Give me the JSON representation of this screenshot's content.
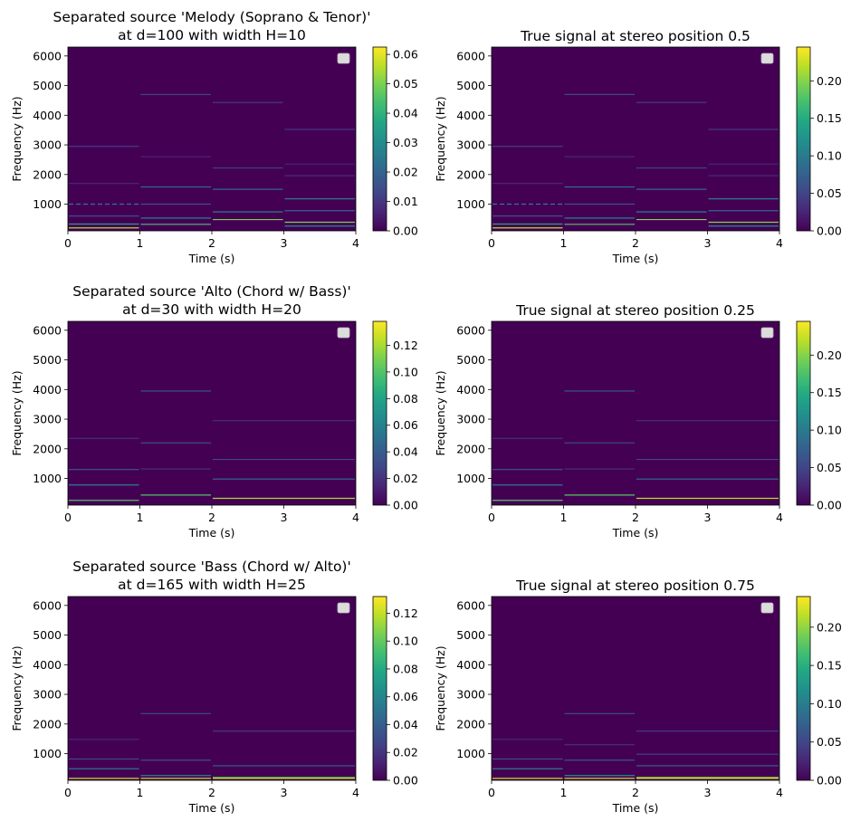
{
  "chart_data": [
    {
      "type": "heatmap",
      "title_lines": [
        "Separated source 'Melody (Soprano & Tenor)'",
        "at d=100 with width H=10"
      ],
      "xlabel": "Time (s)",
      "ylabel": "Frequency (Hz)",
      "xlim": [
        0,
        4
      ],
      "ylim": [
        100,
        6300
      ],
      "xticks": [
        "0",
        "1",
        "2",
        "3",
        "4"
      ],
      "yticks": [
        "1000",
        "2000",
        "3000",
        "4000",
        "5000",
        "6000"
      ],
      "colorbar": {
        "min": 0,
        "max": 0.0625,
        "ticks": [
          0,
          0.01,
          0.02,
          0.03,
          0.04,
          0.05,
          0.06
        ],
        "tick_labels": [
          "0.00",
          "0.01",
          "0.02",
          "0.03",
          "0.04",
          "0.05",
          "0.06"
        ]
      },
      "lines": [
        {
          "t0": 0,
          "t1": 1,
          "f": 1000,
          "v": 0.025,
          "dashed": true
        },
        {
          "t0": 0,
          "t1": 1,
          "f": 2950,
          "v": 0.012
        },
        {
          "t0": 0,
          "t1": 1,
          "f": 1700,
          "v": 0.006
        },
        {
          "t0": 0,
          "t1": 1,
          "f": 600,
          "v": 0.015
        },
        {
          "t0": 0,
          "t1": 1,
          "f": 330,
          "v": 0.035
        },
        {
          "t0": 0,
          "t1": 1,
          "f": 200,
          "v": 0.055
        },
        {
          "t0": 1,
          "t1": 2,
          "f": 4700,
          "v": 0.012
        },
        {
          "t0": 1,
          "t1": 2,
          "f": 2600,
          "v": 0.006
        },
        {
          "t0": 1,
          "t1": 2,
          "f": 1580,
          "v": 0.022
        },
        {
          "t0": 1,
          "t1": 2,
          "f": 1000,
          "v": 0.015
        },
        {
          "t0": 1,
          "t1": 2,
          "f": 530,
          "v": 0.03
        },
        {
          "t0": 1,
          "t1": 2,
          "f": 320,
          "v": 0.045
        },
        {
          "t0": 2,
          "t1": 3,
          "f": 4430,
          "v": 0.01
        },
        {
          "t0": 2,
          "t1": 3,
          "f": 2220,
          "v": 0.012
        },
        {
          "t0": 2,
          "t1": 3,
          "f": 1500,
          "v": 0.02
        },
        {
          "t0": 2,
          "t1": 3,
          "f": 740,
          "v": 0.03
        },
        {
          "t0": 2,
          "t1": 3,
          "f": 480,
          "v": 0.05
        },
        {
          "t0": 3,
          "t1": 4,
          "f": 3520,
          "v": 0.01
        },
        {
          "t0": 3,
          "t1": 4,
          "f": 2350,
          "v": 0.006
        },
        {
          "t0": 3,
          "t1": 4,
          "f": 1960,
          "v": 0.008
        },
        {
          "t0": 3,
          "t1": 4,
          "f": 1180,
          "v": 0.025
        },
        {
          "t0": 3,
          "t1": 4,
          "f": 780,
          "v": 0.02
        },
        {
          "t0": 3,
          "t1": 4,
          "f": 390,
          "v": 0.05
        },
        {
          "t0": 3,
          "t1": 4,
          "f": 260,
          "v": 0.03
        }
      ]
    },
    {
      "type": "heatmap",
      "title_lines": [
        "True signal at stereo position 0.5"
      ],
      "xlabel": "Time (s)",
      "ylabel": "Frequency (Hz)",
      "xlim": [
        0,
        4
      ],
      "ylim": [
        100,
        6300
      ],
      "xticks": [
        "0",
        "1",
        "2",
        "3",
        "4"
      ],
      "yticks": [
        "1000",
        "2000",
        "3000",
        "4000",
        "5000",
        "6000"
      ],
      "colorbar": {
        "min": 0,
        "max": 0.245,
        "ticks": [
          0,
          0.05,
          0.1,
          0.15,
          0.2
        ],
        "tick_labels": [
          "0.00",
          "0.05",
          "0.10",
          "0.15",
          "0.20"
        ]
      },
      "lines": [
        {
          "t0": 0,
          "t1": 1,
          "f": 1000,
          "v": 0.1,
          "dashed": true
        },
        {
          "t0": 0,
          "t1": 1,
          "f": 2950,
          "v": 0.05
        },
        {
          "t0": 0,
          "t1": 1,
          "f": 1700,
          "v": 0.025
        },
        {
          "t0": 0,
          "t1": 1,
          "f": 600,
          "v": 0.06
        },
        {
          "t0": 0,
          "t1": 1,
          "f": 330,
          "v": 0.14
        },
        {
          "t0": 0,
          "t1": 1,
          "f": 200,
          "v": 0.22
        },
        {
          "t0": 1,
          "t1": 2,
          "f": 4700,
          "v": 0.05
        },
        {
          "t0": 1,
          "t1": 2,
          "f": 2600,
          "v": 0.025
        },
        {
          "t0": 1,
          "t1": 2,
          "f": 1580,
          "v": 0.09
        },
        {
          "t0": 1,
          "t1": 2,
          "f": 1000,
          "v": 0.06
        },
        {
          "t0": 1,
          "t1": 2,
          "f": 530,
          "v": 0.12
        },
        {
          "t0": 1,
          "t1": 2,
          "f": 320,
          "v": 0.18
        },
        {
          "t0": 2,
          "t1": 3,
          "f": 4430,
          "v": 0.04
        },
        {
          "t0": 2,
          "t1": 3,
          "f": 2220,
          "v": 0.05
        },
        {
          "t0": 2,
          "t1": 3,
          "f": 1500,
          "v": 0.08
        },
        {
          "t0": 2,
          "t1": 3,
          "f": 740,
          "v": 0.12
        },
        {
          "t0": 2,
          "t1": 3,
          "f": 480,
          "v": 0.2
        },
        {
          "t0": 3,
          "t1": 4,
          "f": 3520,
          "v": 0.04
        },
        {
          "t0": 3,
          "t1": 4,
          "f": 2350,
          "v": 0.025
        },
        {
          "t0": 3,
          "t1": 4,
          "f": 1960,
          "v": 0.03
        },
        {
          "t0": 3,
          "t1": 4,
          "f": 1180,
          "v": 0.1
        },
        {
          "t0": 3,
          "t1": 4,
          "f": 780,
          "v": 0.08
        },
        {
          "t0": 3,
          "t1": 4,
          "f": 390,
          "v": 0.2
        },
        {
          "t0": 3,
          "t1": 4,
          "f": 260,
          "v": 0.12
        }
      ]
    },
    {
      "type": "heatmap",
      "title_lines": [
        "Separated source 'Alto (Chord w/ Bass)'",
        "at d=30 with width H=20"
      ],
      "xlabel": "Time (s)",
      "ylabel": "Frequency (Hz)",
      "xlim": [
        0,
        4
      ],
      "ylim": [
        100,
        6300
      ],
      "xticks": [
        "0",
        "1",
        "2",
        "3",
        "4"
      ],
      "yticks": [
        "1000",
        "2000",
        "3000",
        "4000",
        "5000",
        "6000"
      ],
      "colorbar": {
        "min": 0,
        "max": 0.138,
        "ticks": [
          0,
          0.02,
          0.04,
          0.06,
          0.08,
          0.1,
          0.12
        ],
        "tick_labels": [
          "0.00",
          "0.02",
          "0.04",
          "0.06",
          "0.08",
          "0.10",
          "0.12"
        ]
      },
      "lines": [
        {
          "t0": 0,
          "t1": 1,
          "f": 2350,
          "v": 0.02
        },
        {
          "t0": 0,
          "t1": 1,
          "f": 1300,
          "v": 0.04
        },
        {
          "t0": 0,
          "t1": 1,
          "f": 780,
          "v": 0.06
        },
        {
          "t0": 0,
          "t1": 1,
          "f": 260,
          "v": 0.1
        },
        {
          "t0": 1,
          "t1": 2,
          "f": 3950,
          "v": 0.04
        },
        {
          "t0": 1,
          "t1": 2,
          "f": 2200,
          "v": 0.03
        },
        {
          "t0": 1,
          "t1": 2,
          "f": 1320,
          "v": 0.02
        },
        {
          "t0": 1,
          "t1": 2,
          "f": 440,
          "v": 0.1
        },
        {
          "t0": 2,
          "t1": 4,
          "f": 2950,
          "v": 0.02
        },
        {
          "t0": 2,
          "t1": 4,
          "f": 1640,
          "v": 0.03
        },
        {
          "t0": 2,
          "t1": 4,
          "f": 980,
          "v": 0.05
        },
        {
          "t0": 2,
          "t1": 4,
          "f": 330,
          "v": 0.12
        }
      ]
    },
    {
      "type": "heatmap",
      "title_lines": [
        "True signal at stereo position 0.25"
      ],
      "xlabel": "Time (s)",
      "ylabel": "Frequency (Hz)",
      "xlim": [
        0,
        4
      ],
      "ylim": [
        100,
        6300
      ],
      "xticks": [
        "0",
        "1",
        "2",
        "3",
        "4"
      ],
      "yticks": [
        "1000",
        "2000",
        "3000",
        "4000",
        "5000",
        "6000"
      ],
      "colorbar": {
        "min": 0,
        "max": 0.245,
        "ticks": [
          0,
          0.05,
          0.1,
          0.15,
          0.2
        ],
        "tick_labels": [
          "0.00",
          "0.05",
          "0.10",
          "0.15",
          "0.20"
        ]
      },
      "lines": [
        {
          "t0": 0,
          "t1": 1,
          "f": 2350,
          "v": 0.035
        },
        {
          "t0": 0,
          "t1": 1,
          "f": 1300,
          "v": 0.07
        },
        {
          "t0": 0,
          "t1": 1,
          "f": 780,
          "v": 0.1
        },
        {
          "t0": 0,
          "t1": 1,
          "f": 260,
          "v": 0.18
        },
        {
          "t0": 1,
          "t1": 2,
          "f": 3950,
          "v": 0.07
        },
        {
          "t0": 1,
          "t1": 2,
          "f": 2200,
          "v": 0.05
        },
        {
          "t0": 1,
          "t1": 2,
          "f": 1320,
          "v": 0.035
        },
        {
          "t0": 1,
          "t1": 2,
          "f": 440,
          "v": 0.18
        },
        {
          "t0": 2,
          "t1": 4,
          "f": 2950,
          "v": 0.035
        },
        {
          "t0": 2,
          "t1": 4,
          "f": 1640,
          "v": 0.05
        },
        {
          "t0": 2,
          "t1": 4,
          "f": 980,
          "v": 0.09
        },
        {
          "t0": 2,
          "t1": 4,
          "f": 330,
          "v": 0.22
        }
      ]
    },
    {
      "type": "heatmap",
      "title_lines": [
        "Separated source 'Bass (Chord w/ Alto)'",
        "at d=165 with width H=25"
      ],
      "xlabel": "Time (s)",
      "ylabel": "Frequency (Hz)",
      "xlim": [
        0,
        4
      ],
      "ylim": [
        100,
        6300
      ],
      "xticks": [
        "0",
        "1",
        "2",
        "3",
        "4"
      ],
      "yticks": [
        "1000",
        "2000",
        "3000",
        "4000",
        "5000",
        "6000"
      ],
      "colorbar": {
        "min": 0,
        "max": 0.132,
        "ticks": [
          0,
          0.02,
          0.04,
          0.06,
          0.08,
          0.1,
          0.12
        ],
        "tick_labels": [
          "0.00",
          "0.02",
          "0.04",
          "0.06",
          "0.08",
          "0.10",
          "0.12"
        ]
      },
      "lines": [
        {
          "t0": 0,
          "t1": 1,
          "f": 1480,
          "v": 0.015
        },
        {
          "t0": 0,
          "t1": 1,
          "f": 820,
          "v": 0.03
        },
        {
          "t0": 0,
          "t1": 1,
          "f": 490,
          "v": 0.05
        },
        {
          "t0": 0,
          "t1": 1,
          "f": 165,
          "v": 0.12
        },
        {
          "t0": 1,
          "t1": 2,
          "f": 2350,
          "v": 0.03
        },
        {
          "t0": 1,
          "t1": 2,
          "f": 780,
          "v": 0.03
        },
        {
          "t0": 1,
          "t1": 2,
          "f": 260,
          "v": 0.06
        },
        {
          "t0": 1,
          "t1": 2,
          "f": 165,
          "v": 0.12
        },
        {
          "t0": 2,
          "t1": 4,
          "f": 1760,
          "v": 0.02
        },
        {
          "t0": 2,
          "t1": 4,
          "f": 590,
          "v": 0.04
        },
        {
          "t0": 2,
          "t1": 4,
          "f": 196,
          "v": 0.1
        },
        {
          "t0": 2,
          "t1": 4,
          "f": 165,
          "v": 0.12
        }
      ]
    },
    {
      "type": "heatmap",
      "title_lines": [
        "True signal at stereo position 0.75"
      ],
      "xlabel": "Time (s)",
      "ylabel": "Frequency (Hz)",
      "xlim": [
        0,
        4
      ],
      "ylim": [
        100,
        6300
      ],
      "xticks": [
        "0",
        "1",
        "2",
        "3",
        "4"
      ],
      "yticks": [
        "1000",
        "2000",
        "3000",
        "4000",
        "5000",
        "6000"
      ],
      "colorbar": {
        "min": 0,
        "max": 0.24,
        "ticks": [
          0,
          0.05,
          0.1,
          0.15,
          0.2
        ],
        "tick_labels": [
          "0.00",
          "0.05",
          "0.10",
          "0.15",
          "0.20"
        ]
      },
      "lines": [
        {
          "t0": 0,
          "t1": 1,
          "f": 1480,
          "v": 0.03
        },
        {
          "t0": 0,
          "t1": 1,
          "f": 820,
          "v": 0.06
        },
        {
          "t0": 0,
          "t1": 1,
          "f": 490,
          "v": 0.1
        },
        {
          "t0": 0,
          "t1": 1,
          "f": 165,
          "v": 0.22
        },
        {
          "t0": 1,
          "t1": 2,
          "f": 2350,
          "v": 0.06
        },
        {
          "t0": 1,
          "t1": 2,
          "f": 1300,
          "v": 0.035
        },
        {
          "t0": 1,
          "t1": 2,
          "f": 780,
          "v": 0.06
        },
        {
          "t0": 1,
          "t1": 2,
          "f": 260,
          "v": 0.12
        },
        {
          "t0": 1,
          "t1": 2,
          "f": 165,
          "v": 0.22
        },
        {
          "t0": 2,
          "t1": 4,
          "f": 1760,
          "v": 0.04
        },
        {
          "t0": 2,
          "t1": 4,
          "f": 980,
          "v": 0.05
        },
        {
          "t0": 2,
          "t1": 4,
          "f": 590,
          "v": 0.08
        },
        {
          "t0": 2,
          "t1": 4,
          "f": 196,
          "v": 0.2
        },
        {
          "t0": 2,
          "t1": 4,
          "f": 165,
          "v": 0.22
        }
      ]
    }
  ]
}
